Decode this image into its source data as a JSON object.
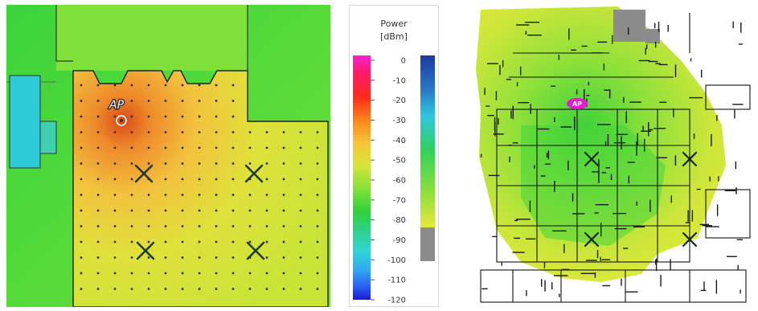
{
  "left_map": {
    "ap_label": "AP"
  },
  "legend": {
    "title_line1": "Power",
    "title_line2": "[dBm]",
    "ticks": [
      "0",
      "-10",
      "-20",
      "-30",
      "-40",
      "-50",
      "-60",
      "-70",
      "-80",
      "-90",
      "-100",
      "-110",
      "-120"
    ]
  },
  "right_map": {
    "ap_label": "AP"
  },
  "colors": {
    "strong": "#d9471b",
    "medium": "#f0b43a",
    "weak": "#d8e83c",
    "floor_green": "#3dd63d",
    "cyan_room": "#27c9d9"
  }
}
